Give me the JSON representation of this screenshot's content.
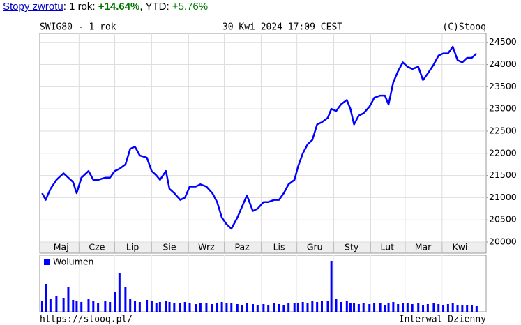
{
  "header": {
    "link": "Stopy zwrotu",
    "label1": ": 1 rok: ",
    "ret1": "+14.64%",
    "label2": ", YTD: ",
    "ret2": "+5.76%"
  },
  "footer": {
    "left": "https://stooq.pl/",
    "right": "Interwal Dzienny"
  },
  "chart_data": [
    {
      "type": "line",
      "title": "SWIG80 - 1 rok",
      "subtitle": "30 Kwi 2024 17:09 CEST",
      "source": "(C)Stooq",
      "color": "#0000ff",
      "x": [
        0,
        3,
        7,
        12,
        18,
        22,
        26,
        29,
        33,
        39,
        43,
        47,
        53,
        57,
        61,
        65,
        70,
        74,
        78,
        82,
        88,
        92,
        96,
        99,
        104,
        107,
        111,
        116,
        120,
        124,
        129,
        133,
        138,
        143,
        147,
        151,
        155,
        159,
        164,
        168,
        172,
        177,
        181,
        186,
        190,
        195,
        199,
        203,
        207,
        212,
        215,
        219,
        223,
        227,
        231,
        235,
        240,
        243,
        247,
        251,
        256,
        259,
        262,
        266,
        270,
        275,
        279,
        284,
        288,
        291,
        295,
        299,
        303,
        307,
        311,
        316,
        320,
        324,
        329,
        333,
        337,
        341,
        345,
        349,
        353,
        357,
        361,
        365
      ],
      "values": [
        21100,
        20950,
        21200,
        21400,
        21550,
        21450,
        21350,
        21100,
        21450,
        21600,
        21400,
        21400,
        21450,
        21450,
        21600,
        21650,
        21750,
        22100,
        22150,
        21950,
        21900,
        21600,
        21500,
        21400,
        21600,
        21200,
        21100,
        20950,
        21000,
        21250,
        21250,
        21300,
        21250,
        21100,
        20900,
        20550,
        20400,
        20300,
        20550,
        20800,
        21050,
        20700,
        20750,
        20900,
        20900,
        20950,
        20950,
        21100,
        21300,
        21400,
        21700,
        22000,
        22200,
        22300,
        22650,
        22700,
        22800,
        23000,
        22950,
        23100,
        23200,
        23000,
        22650,
        22850,
        22900,
        23050,
        23250,
        23300,
        23300,
        23100,
        23600,
        23850,
        24050,
        23950,
        23900,
        23950,
        23650,
        23800,
        24000,
        24200,
        24250,
        24250,
        24400,
        24100,
        24050,
        24150,
        24150,
        24250
      ],
      "xlim": [
        -2,
        373
      ],
      "ylim": [
        20000,
        24700
      ],
      "yticks": [
        20000,
        20500,
        21000,
        21500,
        22000,
        22500,
        23000,
        23500,
        24000,
        24500
      ],
      "xgrid": [
        31,
        61,
        92,
        123,
        153,
        184,
        214,
        245,
        276,
        305,
        336
      ],
      "xticks": [
        {
          "value": 16,
          "label": "Maj"
        },
        {
          "value": 46,
          "label": "Cze"
        },
        {
          "value": 76,
          "label": "Lip"
        },
        {
          "value": 107,
          "label": "Sie"
        },
        {
          "value": 138,
          "label": "Wrz"
        },
        {
          "value": 168,
          "label": "Paz"
        },
        {
          "value": 199,
          "label": "Lis"
        },
        {
          "value": 229,
          "label": "Gru"
        },
        {
          "value": 260,
          "label": "Sty"
        },
        {
          "value": 290,
          "label": "Lut"
        },
        {
          "value": 320,
          "label": "Mar"
        },
        {
          "value": 351,
          "label": "Kwi"
        }
      ],
      "grid": true
    },
    {
      "type": "bar",
      "legend": "Wolumen",
      "color": "#0000ff",
      "x": [
        0,
        3,
        7,
        12,
        18,
        22,
        26,
        29,
        33,
        39,
        43,
        47,
        53,
        57,
        61,
        65,
        70,
        74,
        78,
        82,
        88,
        92,
        96,
        99,
        104,
        107,
        111,
        116,
        120,
        124,
        129,
        133,
        138,
        143,
        147,
        151,
        155,
        159,
        164,
        168,
        172,
        177,
        181,
        186,
        190,
        195,
        199,
        203,
        207,
        212,
        215,
        219,
        223,
        227,
        231,
        235,
        240,
        243,
        247,
        251,
        256,
        259,
        262,
        266,
        270,
        275,
        279,
        284,
        288,
        291,
        295,
        299,
        303,
        307,
        311,
        316,
        320,
        324,
        329,
        333,
        337,
        341,
        345,
        349,
        353,
        357,
        361,
        365
      ],
      "values": [
        15,
        40,
        18,
        22,
        20,
        35,
        17,
        16,
        14,
        18,
        15,
        13,
        16,
        14,
        28,
        55,
        35,
        18,
        16,
        14,
        17,
        15,
        13,
        14,
        16,
        14,
        12,
        13,
        14,
        12,
        11,
        13,
        12,
        11,
        12,
        14,
        13,
        12,
        11,
        10,
        12,
        11,
        10,
        11,
        10,
        12,
        11,
        10,
        12,
        13,
        12,
        14,
        13,
        15,
        14,
        16,
        15,
        73,
        18,
        14,
        16,
        13,
        12,
        11,
        12,
        11,
        13,
        12,
        10,
        12,
        14,
        11,
        13,
        12,
        11,
        12,
        10,
        11,
        12,
        11,
        10,
        11,
        12,
        10,
        9,
        10,
        9,
        8
      ],
      "xlim": [
        -2,
        373
      ],
      "ylim": [
        0,
        81
      ]
    }
  ]
}
